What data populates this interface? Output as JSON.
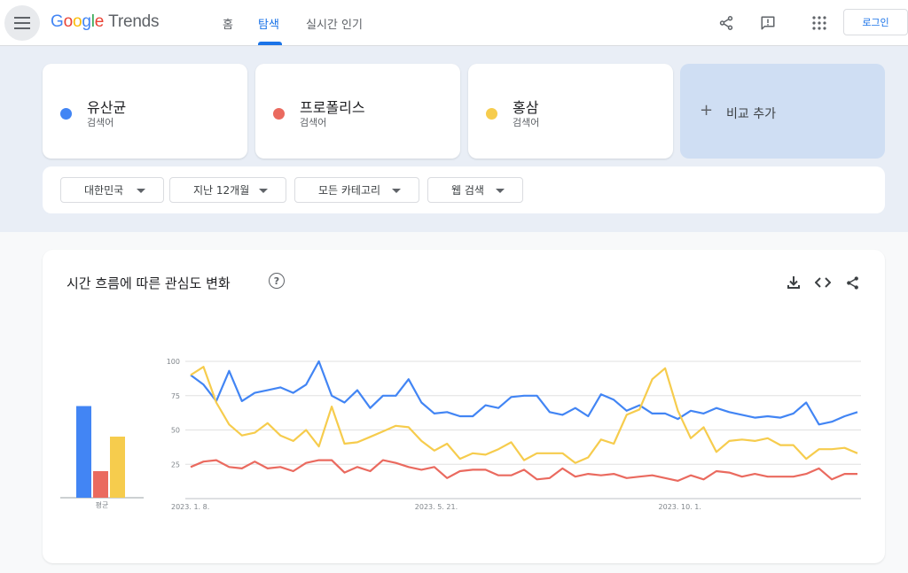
{
  "header": {
    "logo": {
      "g": "G",
      "o1": "o",
      "o2": "o",
      "g2": "g",
      "l": "l",
      "e": "e",
      "product": "Trends"
    },
    "nav": [
      "홈",
      "탐색",
      "실시간 인기"
    ],
    "active_tab": "탐색",
    "login": "로그인",
    "icons": [
      "menu-icon",
      "share-icon",
      "feedback-icon",
      "apps-icon"
    ]
  },
  "terms": [
    {
      "name": "유산균",
      "type": "검색어",
      "color": "#4285f4"
    },
    {
      "name": "프로폴리스",
      "type": "검색어",
      "color": "#ea6a5f"
    },
    {
      "name": "홍삼",
      "type": "검색어",
      "color": "#f6cc4d"
    }
  ],
  "add_compare": "비교 추가",
  "filters": [
    "대한민국",
    "지난 12개월",
    "모든 카테고리",
    "웹 검색"
  ],
  "chart_card": {
    "title": "시간 흐름에 따른 관심도 변화",
    "help": "?",
    "icons": [
      "download-icon",
      "embed-icon",
      "share-icon"
    ]
  },
  "chart_data": {
    "type": "line",
    "title": "",
    "y_ticks": [
      100,
      75,
      50,
      25
    ],
    "ylim": [
      0,
      100
    ],
    "x_labels": [
      "2023. 1. 8.",
      "2023. 5. 21.",
      "2023. 10. 1."
    ],
    "x_label_indices": [
      0,
      19,
      38
    ],
    "grid": true,
    "averages_label": "평균",
    "averages": [
      {
        "name": "유산균",
        "value": 69
      },
      {
        "name": "프로폴리스",
        "value": 20
      },
      {
        "name": "홍삼",
        "value": 46
      }
    ],
    "series": [
      {
        "name": "유산균",
        "color": "#4285f4",
        "values": [
          90,
          83,
          71,
          93,
          71,
          77,
          79,
          81,
          77,
          83,
          100,
          75,
          70,
          79,
          66,
          75,
          75,
          87,
          70,
          62,
          63,
          60,
          60,
          68,
          66,
          74,
          75,
          75,
          63,
          61,
          66,
          60,
          76,
          72,
          64,
          68,
          62,
          62,
          58,
          64,
          62,
          66,
          63,
          61,
          59,
          60,
          59,
          62,
          70,
          54,
          56,
          60,
          63
        ]
      },
      {
        "name": "프로폴리스",
        "color": "#ea6a5f",
        "values": [
          23,
          27,
          28,
          23,
          22,
          27,
          22,
          23,
          20,
          26,
          28,
          28,
          19,
          23,
          20,
          28,
          26,
          23,
          21,
          23,
          15,
          20,
          21,
          21,
          17,
          17,
          21,
          14,
          15,
          22,
          16,
          18,
          17,
          18,
          15,
          16,
          17,
          15,
          13,
          17,
          14,
          20,
          19,
          16,
          18,
          16,
          16,
          16,
          18,
          22,
          14,
          18,
          18
        ]
      },
      {
        "name": "홍삼",
        "color": "#f6cc4d",
        "values": [
          90,
          96,
          70,
          54,
          46,
          48,
          55,
          46,
          42,
          50,
          38,
          67,
          40,
          41,
          45,
          49,
          53,
          52,
          42,
          35,
          40,
          29,
          33,
          32,
          36,
          41,
          28,
          33,
          33,
          33,
          26,
          30,
          43,
          40,
          61,
          65,
          87,
          95,
          64,
          44,
          52,
          34,
          42,
          43,
          42,
          44,
          39,
          39,
          29,
          36,
          36,
          37,
          33
        ]
      }
    ]
  }
}
